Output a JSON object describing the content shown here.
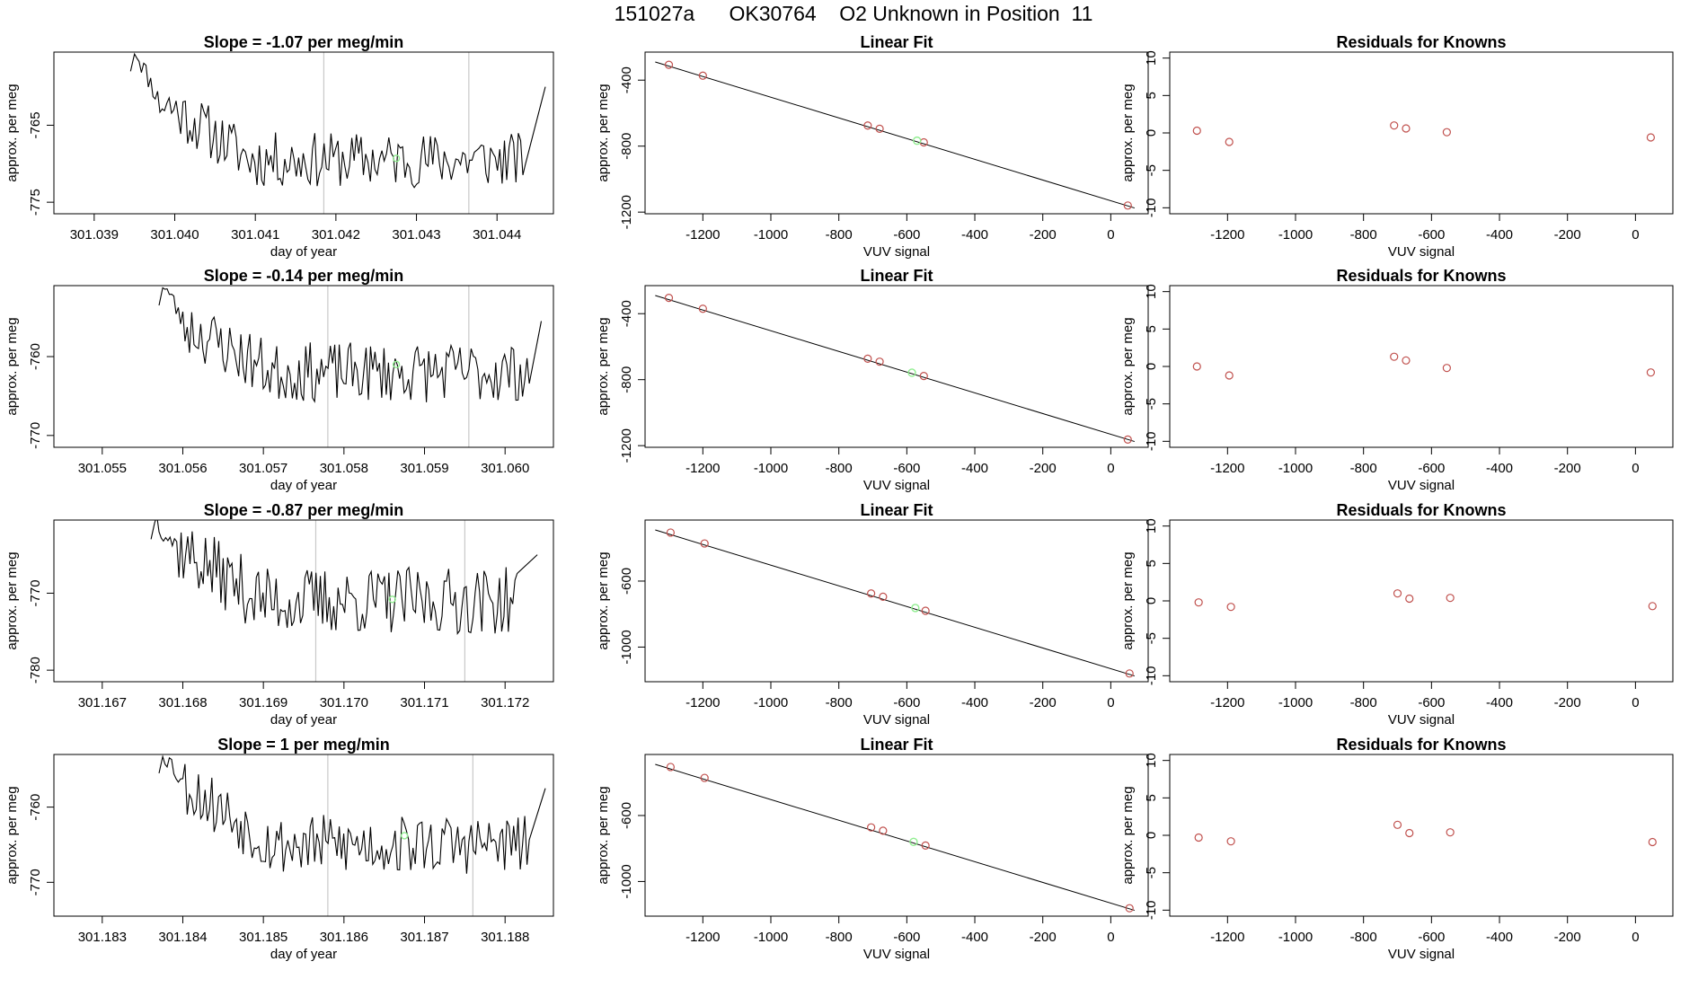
{
  "page_title": "151027a      OK30764    O2 Unknown in Position  11",
  "chart_data": [
    {
      "type": "line",
      "title": "Slope =  -1.07  per meg/min",
      "xlabel": "day of year",
      "ylabel": "approx. per meg",
      "xlim": [
        301.0385,
        301.0447
      ],
      "ylim": [
        -776.5,
        -755.5
      ],
      "xticks": [
        301.039,
        301.04,
        301.041,
        301.042,
        301.043,
        301.044
      ],
      "xtick_labels": [
        "301.039",
        "301.040",
        "301.041",
        "301.042",
        "301.043",
        "301.044"
      ],
      "yticks": [
        -765,
        -775
      ],
      "ytick_labels": [
        "-765",
        "-775"
      ],
      "vlines": [
        301.04185,
        301.04365
      ],
      "trace": {
        "x_start": 301.0395,
        "x_end": 301.04435,
        "rise_end": 301.0446,
        "n": 170,
        "edge_value": -755.0,
        "start_value": -761.5,
        "mean": -769.5,
        "noise": 1.8,
        "seed": 11
      },
      "green_point": {
        "x": 301.04275,
        "y": -769.3
      }
    },
    {
      "type": "scatter",
      "title": "Linear Fit",
      "xlabel": "VUV signal",
      "ylabel": "approx. per meg",
      "xlim": [
        -1370,
        110
      ],
      "ylim": [
        -1210,
        -230
      ],
      "xticks": [
        -1200,
        -1000,
        -800,
        -600,
        -400,
        -200,
        0
      ],
      "xtick_labels": [
        "-1200",
        "-1000",
        "-800",
        "-600",
        "-400",
        "-200",
        "0"
      ],
      "yticks": [
        -400,
        -800,
        -1200
      ],
      "ytick_labels": [
        "-400",
        "-800",
        "-1200"
      ],
      "fit_line": {
        "x": [
          -1340,
          70
        ],
        "y": [
          -290,
          -1175
        ]
      },
      "points": {
        "x": [
          -1300,
          -1200,
          -715,
          -680,
          -550,
          50
        ],
        "y": [
          -307,
          -373,
          -675,
          -695,
          -777,
          -1160
        ]
      },
      "unknown_point": {
        "x": -570,
        "y": -767
      }
    },
    {
      "type": "scatter",
      "title": "Residuals for Knowns",
      "xlabel": "VUV signal",
      "ylabel": "approx. per meg",
      "xlim": [
        -1370,
        110
      ],
      "ylim": [
        -10.8,
        10.8
      ],
      "xticks": [
        -1200,
        -1000,
        -800,
        -600,
        -400,
        -200,
        0
      ],
      "xtick_labels": [
        "-1200",
        "-1000",
        "-800",
        "-600",
        "-400",
        "-200",
        "0"
      ],
      "yticks": [
        10,
        5,
        0,
        -5,
        -10
      ],
      "ytick_labels": [
        "10",
        "5",
        "0",
        "-5",
        "-10"
      ],
      "points": {
        "x": [
          -1290,
          -1195,
          -710,
          -675,
          -555,
          45
        ],
        "y": [
          0.3,
          -1.2,
          1.0,
          0.6,
          0.1,
          -0.6
        ]
      }
    },
    {
      "type": "line",
      "title": "Slope =  -0.14  per meg/min",
      "xlabel": "day of year",
      "ylabel": "approx. per meg",
      "xlim": [
        301.0544,
        301.0606
      ],
      "ylim": [
        -771.5,
        -751.0
      ],
      "xticks": [
        301.055,
        301.056,
        301.057,
        301.058,
        301.059,
        301.06
      ],
      "xtick_labels": [
        "301.055",
        "301.056",
        "301.057",
        "301.058",
        "301.059",
        "301.060"
      ],
      "yticks": [
        -760,
        -770
      ],
      "ytick_labels": [
        "-760",
        "-770"
      ],
      "vlines": [
        301.0578,
        301.05955
      ],
      "trace": {
        "x_start": 301.05575,
        "x_end": 301.0603,
        "rise_end": 301.06045,
        "n": 165,
        "edge_value": -750.5,
        "start_value": -756.0,
        "mean": -762.0,
        "noise": 1.9,
        "seed": 23
      },
      "green_point": {
        "x": 301.05865,
        "y": -761.0
      }
    },
    {
      "type": "scatter",
      "title": "Linear Fit",
      "xlabel": "VUV signal",
      "ylabel": "approx. per meg",
      "xlim": [
        -1370,
        110
      ],
      "ylim": [
        -1210,
        -230
      ],
      "xticks": [
        -1200,
        -1000,
        -800,
        -600,
        -400,
        -200,
        0
      ],
      "xtick_labels": [
        "-1200",
        "-1000",
        "-800",
        "-600",
        "-400",
        "-200",
        "0"
      ],
      "yticks": [
        -400,
        -800,
        -1200
      ],
      "ytick_labels": [
        "-400",
        "-800",
        "-1200"
      ],
      "fit_line": {
        "x": [
          -1340,
          70
        ],
        "y": [
          -290,
          -1175
        ]
      },
      "points": {
        "x": [
          -1300,
          -1200,
          -715,
          -680,
          -550,
          50
        ],
        "y": [
          -304,
          -370,
          -673,
          -691,
          -778,
          -1163
        ]
      },
      "unknown_point": {
        "x": -585,
        "y": -758
      }
    },
    {
      "type": "scatter",
      "title": "Residuals for Knowns",
      "xlabel": "VUV signal",
      "ylabel": "approx. per meg",
      "xlim": [
        -1370,
        110
      ],
      "ylim": [
        -10.8,
        10.8
      ],
      "xticks": [
        -1200,
        -1000,
        -800,
        -600,
        -400,
        -200,
        0
      ],
      "xtick_labels": [
        "-1200",
        "-1000",
        "-800",
        "-600",
        "-400",
        "-200",
        "0"
      ],
      "yticks": [
        10,
        5,
        0,
        -5,
        -10
      ],
      "ytick_labels": [
        "10",
        "5",
        "0",
        "-5",
        "-10"
      ],
      "points": {
        "x": [
          -1290,
          -1195,
          -710,
          -675,
          -555,
          45
        ],
        "y": [
          0.0,
          -1.2,
          1.3,
          0.8,
          -0.2,
          -0.8
        ]
      }
    },
    {
      "type": "line",
      "title": "Slope =  -0.87  per meg/min",
      "xlabel": "day of year",
      "ylabel": "approx. per meg",
      "xlim": [
        301.1664,
        301.1726
      ],
      "ylim": [
        -781.5,
        -760.5
      ],
      "xticks": [
        301.167,
        301.168,
        301.169,
        301.17,
        301.171,
        301.172
      ],
      "xtick_labels": [
        "301.167",
        "301.168",
        "301.169",
        "301.170",
        "301.171",
        "301.172"
      ],
      "yticks": [
        -770,
        -780
      ],
      "ytick_labels": [
        "-770",
        "-780"
      ],
      "vlines": [
        301.16965,
        301.1715
      ],
      "trace": {
        "x_start": 301.16765,
        "x_end": 301.17215,
        "rise_end": 301.1724,
        "n": 165,
        "edge_value": -760.0,
        "start_value": -764.0,
        "mean": -771.0,
        "noise": 2.2,
        "seed": 37
      },
      "green_point": {
        "x": 301.1706,
        "y": -770.8
      }
    },
    {
      "type": "scatter",
      "title": "Linear Fit",
      "xlabel": "VUV signal",
      "ylabel": "approx. per meg",
      "xlim": [
        -1370,
        110
      ],
      "ylim": [
        -1210,
        -230
      ],
      "xticks": [
        -1200,
        -1000,
        -800,
        -600,
        -400,
        -200,
        0
      ],
      "xtick_labels": [
        "-1200",
        "-1000",
        "-800",
        "-600",
        "-400",
        "-200",
        "0"
      ],
      "yticks": [
        -600,
        -1000
      ],
      "ytick_labels": [
        "-600",
        "-1000"
      ],
      "fit_line": {
        "x": [
          -1340,
          70
        ],
        "y": [
          -290,
          -1175
        ]
      },
      "points": {
        "x": [
          -1295,
          -1195,
          -705,
          -670,
          -545,
          55
        ],
        "y": [
          -306,
          -372,
          -675,
          -695,
          -780,
          -1160
        ]
      },
      "unknown_point": {
        "x": -575,
        "y": -763
      }
    },
    {
      "type": "scatter",
      "title": "Residuals for Knowns",
      "xlabel": "VUV signal",
      "ylabel": "approx. per meg",
      "xlim": [
        -1370,
        110
      ],
      "ylim": [
        -10.8,
        10.8
      ],
      "xticks": [
        -1200,
        -1000,
        -800,
        -600,
        -400,
        -200,
        0
      ],
      "xtick_labels": [
        "-1200",
        "-1000",
        "-800",
        "-600",
        "-400",
        "-200",
        "0"
      ],
      "yticks": [
        10,
        5,
        0,
        -5,
        -10
      ],
      "ytick_labels": [
        "10",
        "5",
        "0",
        "-5",
        "-10"
      ],
      "points": {
        "x": [
          -1285,
          -1190,
          -700,
          -665,
          -545,
          50
        ],
        "y": [
          -0.2,
          -0.8,
          1.0,
          0.3,
          0.4,
          -0.7
        ]
      }
    },
    {
      "type": "line",
      "title": "Slope =  1  per meg/min",
      "xlabel": "day of year",
      "ylabel": "approx. per meg",
      "xlim": [
        301.1824,
        301.1886
      ],
      "ylim": [
        -774.5,
        -753.0
      ],
      "xticks": [
        301.183,
        301.184,
        301.185,
        301.186,
        301.187,
        301.188
      ],
      "xtick_labels": [
        "301.183",
        "301.184",
        "301.185",
        "301.186",
        "301.187",
        "301.188"
      ],
      "yticks": [
        -760,
        -770
      ],
      "ytick_labels": [
        "-760",
        "-770"
      ],
      "vlines": [
        301.1858,
        301.1876
      ],
      "trace": {
        "x_start": 301.18375,
        "x_end": 301.1883,
        "rise_end": 301.1885,
        "n": 165,
        "edge_value": -752.5,
        "start_value": -757.0,
        "mean": -765.0,
        "noise": 2.0,
        "seed": 53
      },
      "green_point": {
        "x": 301.18675,
        "y": -763.8
      }
    },
    {
      "type": "scatter",
      "title": "Linear Fit",
      "xlabel": "VUV signal",
      "ylabel": "approx. per meg",
      "xlim": [
        -1370,
        110
      ],
      "ylim": [
        -1210,
        -230
      ],
      "xticks": [
        -1200,
        -1000,
        -800,
        -600,
        -400,
        -200,
        0
      ],
      "xtick_labels": [
        "-1200",
        "-1000",
        "-800",
        "-600",
        "-400",
        "-200",
        "0"
      ],
      "yticks": [
        -600,
        -1000
      ],
      "ytick_labels": [
        "-600",
        "-1000"
      ],
      "fit_line": {
        "x": [
          -1340,
          70
        ],
        "y": [
          -290,
          -1175
        ]
      },
      "points": {
        "x": [
          -1295,
          -1195,
          -705,
          -670,
          -545,
          55
        ],
        "y": [
          -306,
          -372,
          -672,
          -692,
          -782,
          -1162
        ]
      },
      "unknown_point": {
        "x": -580,
        "y": -760
      }
    },
    {
      "type": "scatter",
      "title": "Residuals for Knowns",
      "xlabel": "VUV signal",
      "ylabel": "approx. per meg",
      "xlim": [
        -1370,
        110
      ],
      "ylim": [
        -10.8,
        10.8
      ],
      "xticks": [
        -1200,
        -1000,
        -800,
        -600,
        -400,
        -200,
        0
      ],
      "xtick_labels": [
        "-1200",
        "-1000",
        "-800",
        "-600",
        "-400",
        "-200",
        "0"
      ],
      "yticks": [
        10,
        5,
        0,
        -5,
        -10
      ],
      "ytick_labels": [
        "10",
        "5",
        "0",
        "-5",
        "-10"
      ],
      "points": {
        "x": [
          -1285,
          -1190,
          -700,
          -665,
          -545,
          50
        ],
        "y": [
          -0.3,
          -0.8,
          1.4,
          0.3,
          0.4,
          -0.9
        ]
      }
    }
  ],
  "colors": {
    "axis": "#000000",
    "line": "#000000",
    "vline": "#c8c8c8",
    "known_point": "#c0504d",
    "unknown_point": "#90ee90"
  }
}
